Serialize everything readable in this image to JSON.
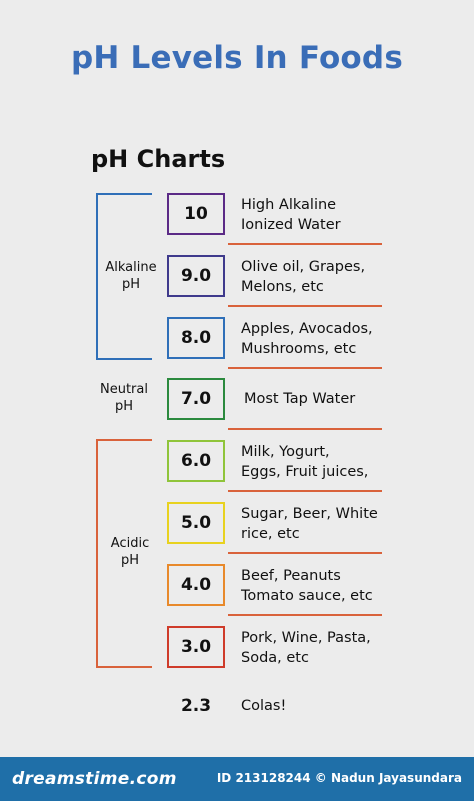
{
  "title": "pH Levels In Foods",
  "subtitle": "pH Charts",
  "groups": {
    "alkaline": [
      "Alkaline",
      "pH"
    ],
    "neutral": [
      "Neutral",
      "pH"
    ],
    "acidic": [
      "Acidic",
      "pH"
    ]
  },
  "rows": [
    {
      "value": "10",
      "desc": [
        "High Alkaline",
        "Ionized Water"
      ],
      "color": "#5b2a86"
    },
    {
      "value": "9.0",
      "desc": [
        "Olive oil, Grapes,",
        "Melons, etc"
      ],
      "color": "#3f3a8c"
    },
    {
      "value": "8.0",
      "desc": [
        "Apples, Avocados,",
        "Mushrooms, etc"
      ],
      "color": "#2f6fb8"
    },
    {
      "value": "7.0",
      "desc": [
        "Most Tap Water"
      ],
      "color": "#2b8a3e"
    },
    {
      "value": "6.0",
      "desc": [
        "Milk, Yogurt,",
        "Eggs, Fruit juices,"
      ],
      "color": "#8fc43a"
    },
    {
      "value": "5.0",
      "desc": [
        "Sugar, Beer, White",
        "rice, etc"
      ],
      "color": "#e8d21f"
    },
    {
      "value": "4.0",
      "desc": [
        "Beef, Peanuts",
        "Tomato sauce, etc"
      ],
      "color": "#e8892b"
    },
    {
      "value": "3.0",
      "desc": [
        "Pork, Wine, Pasta,",
        "Soda, etc"
      ],
      "color": "#cf3b2a"
    },
    {
      "value": "2.3",
      "desc": [
        "Colas!"
      ],
      "color": ""
    }
  ],
  "colors": {
    "title": "#3a6db7",
    "alkaline_bracket": "#2f6fb8",
    "acidic_bracket": "#d9623b",
    "divider": "#d9623b",
    "footer": "#1f6fa8"
  },
  "footer": {
    "brand": "dreamstime.com",
    "credit": "ID 213128244 © Nadun Jayasundara"
  }
}
